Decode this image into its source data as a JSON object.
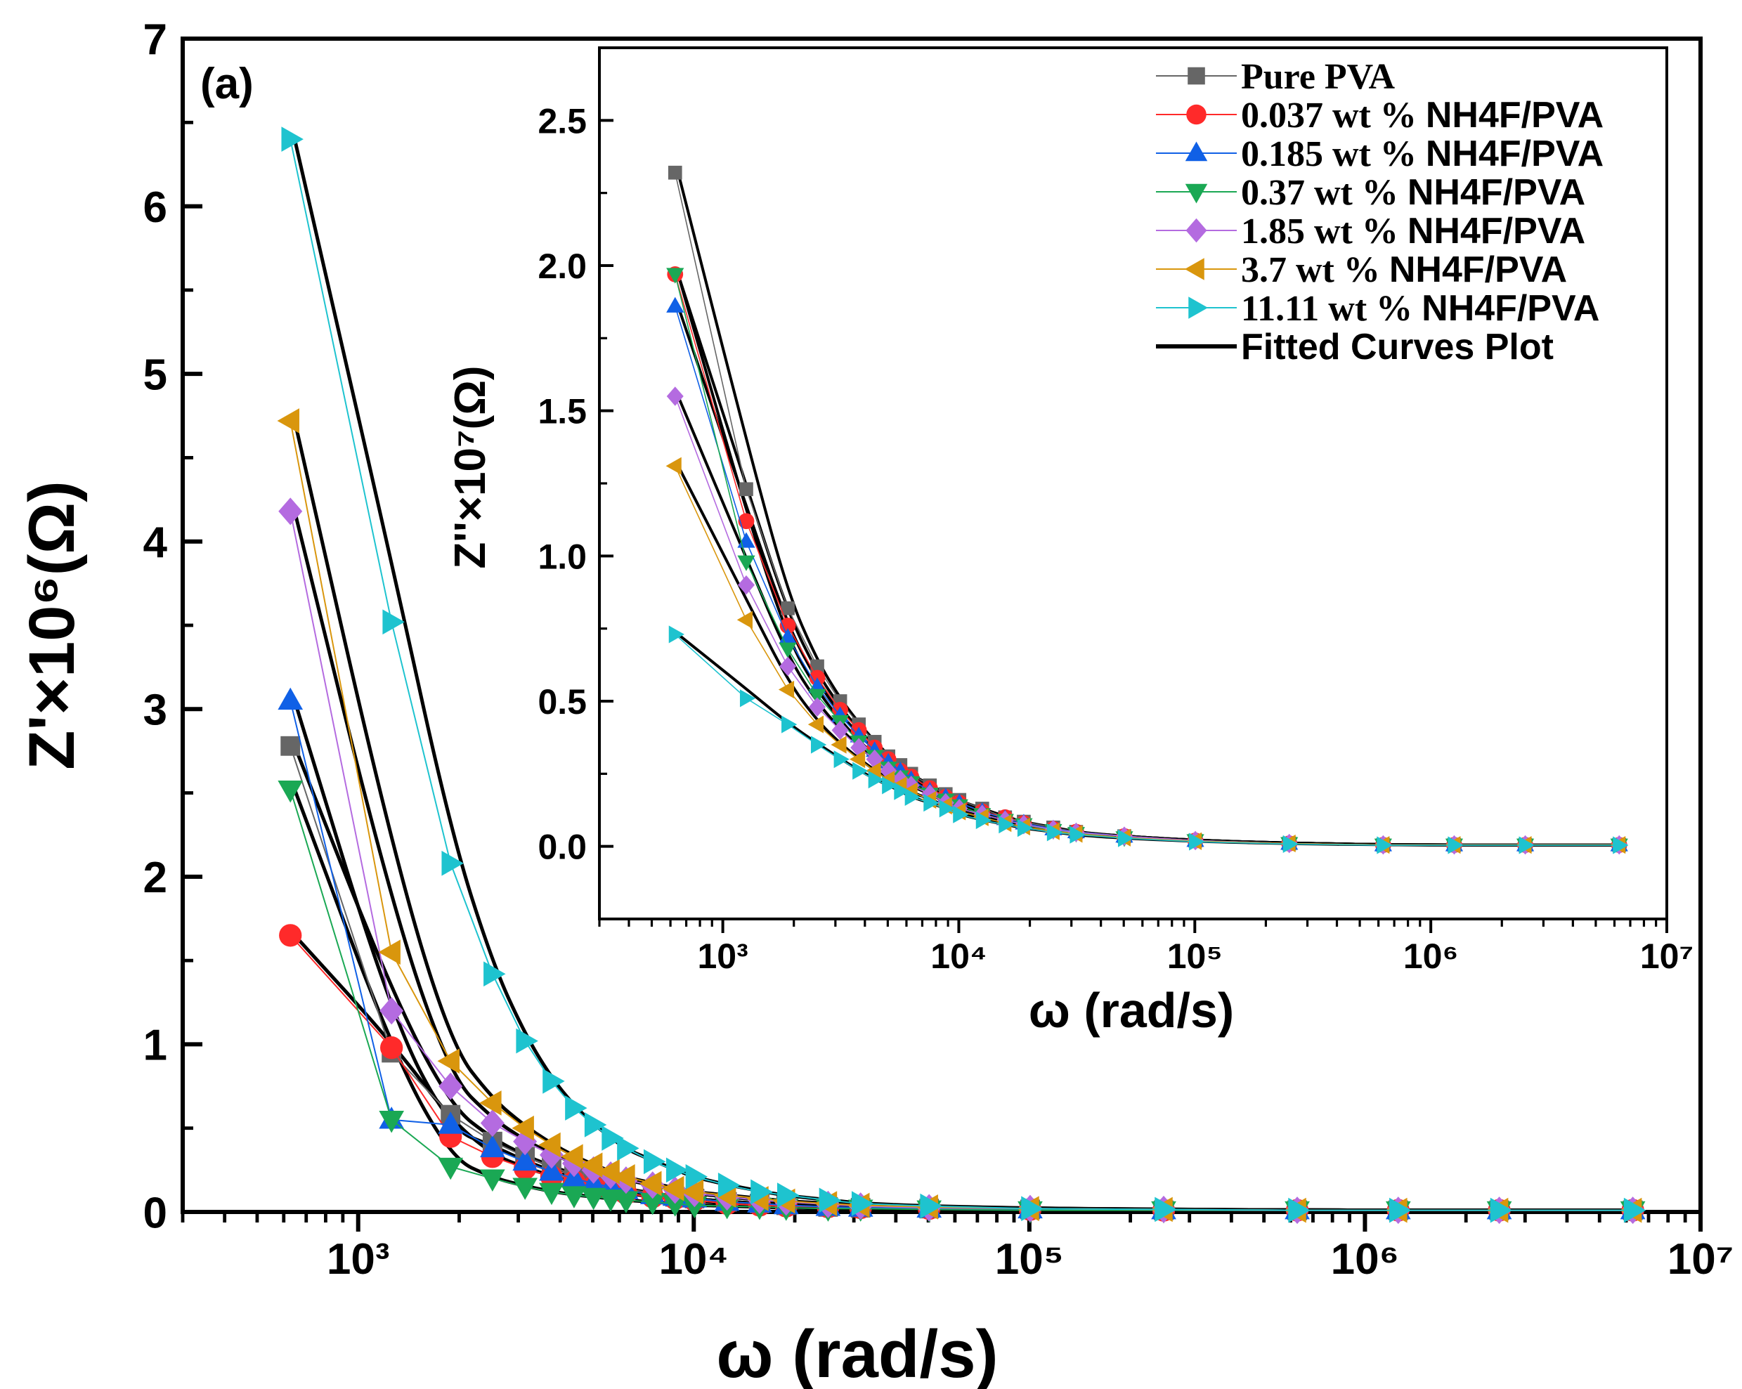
{
  "chart_data": [
    {
      "type": "scatter",
      "panel_label": "(a)",
      "xlabel": "ω (rad/s)",
      "ylabel": "Z'×10⁶(Ω)",
      "xscale": "log",
      "xlim": [
        300,
        10000000
      ],
      "ylim": [
        0,
        7
      ],
      "xtick_values": [
        1000,
        10000,
        100000,
        1000000,
        10000000
      ],
      "xtick_labels": [
        "10³",
        "10⁴",
        "10⁵",
        "10⁶",
        "10⁷"
      ],
      "ytick_values": [
        0,
        1,
        2,
        3,
        4,
        5,
        6,
        7
      ],
      "ytick_labels": [
        "0",
        "1",
        "2",
        "3",
        "4",
        "5",
        "6",
        "7"
      ],
      "series": [
        {
          "name": "Pure PVA",
          "color": "#666666",
          "marker": "square",
          "x": [
            628,
            1257,
            1885,
            2513,
            3142,
            3770,
            4398,
            5027,
            5655,
            6283,
            7540,
            8796,
            10053,
            12566,
            15708,
            18850,
            25133,
            31416,
            50265,
            100531,
            251327,
            628319,
            1256637,
            2513274,
            6283185
          ],
          "y": [
            2.78,
            0.95,
            0.58,
            0.42,
            0.33,
            0.27,
            0.22,
            0.19,
            0.16,
            0.14,
            0.11,
            0.09,
            0.08,
            0.06,
            0.05,
            0.04,
            0.03,
            0.025,
            0.02,
            0.015,
            0.01,
            0.01,
            0.01,
            0.01,
            0.01
          ]
        },
        {
          "name": "0.037 wt % NH4F/PVA",
          "color": "#ff2a2a",
          "marker": "circle",
          "x": [
            628,
            1257,
            1885,
            2513,
            3142,
            3770,
            4398,
            5027,
            5655,
            6283,
            7540,
            8796,
            10053,
            12566,
            15708,
            18850,
            25133,
            31416,
            50265,
            100531,
            251327,
            628319,
            1256637,
            2513274,
            6283185
          ],
          "y": [
            1.65,
            0.98,
            0.45,
            0.33,
            0.26,
            0.21,
            0.18,
            0.15,
            0.13,
            0.11,
            0.09,
            0.08,
            0.07,
            0.05,
            0.04,
            0.035,
            0.03,
            0.025,
            0.02,
            0.015,
            0.01,
            0.01,
            0.01,
            0.01,
            0.01
          ]
        },
        {
          "name": "0.185 wt % NH4F/PVA",
          "color": "#1060e6",
          "marker": "triangle-up",
          "x": [
            628,
            1257,
            1885,
            2513,
            3142,
            3770,
            4398,
            5027,
            5655,
            6283,
            7540,
            8796,
            10053,
            12566,
            15708,
            18850,
            25133,
            31416,
            50265,
            100531,
            251327,
            628319,
            1256637,
            2513274,
            6283185
          ],
          "y": [
            3.05,
            0.55,
            0.52,
            0.38,
            0.3,
            0.24,
            0.2,
            0.17,
            0.15,
            0.13,
            0.1,
            0.09,
            0.08,
            0.06,
            0.05,
            0.04,
            0.03,
            0.025,
            0.02,
            0.015,
            0.01,
            0.01,
            0.01,
            0.01,
            0.01
          ]
        },
        {
          "name": "0.37 wt % NH4F/PVA",
          "color": "#1aa854",
          "marker": "triangle-down",
          "x": [
            628,
            1257,
            1885,
            2513,
            3142,
            3770,
            4398,
            5027,
            5655,
            6283,
            7540,
            8796,
            10053,
            12566,
            15708,
            18850,
            25133,
            31416,
            50265,
            100531,
            251327,
            628319,
            1256637,
            2513274,
            6283185
          ],
          "y": [
            2.52,
            0.55,
            0.27,
            0.2,
            0.15,
            0.12,
            0.1,
            0.09,
            0.08,
            0.07,
            0.06,
            0.05,
            0.04,
            0.035,
            0.03,
            0.025,
            0.02,
            0.02,
            0.015,
            0.01,
            0.01,
            0.01,
            0.01,
            0.01,
            0.01
          ]
        },
        {
          "name": "1.85 wt % NH4F/PVA",
          "color": "#b46be0",
          "marker": "diamond",
          "x": [
            628,
            1257,
            1885,
            2513,
            3142,
            3770,
            4398,
            5027,
            5655,
            6283,
            7540,
            8796,
            10053,
            12566,
            15708,
            18850,
            25133,
            31416,
            50265,
            100531,
            251327,
            628319,
            1256637,
            2513274,
            6283185
          ],
          "y": [
            4.18,
            1.2,
            0.75,
            0.53,
            0.42,
            0.34,
            0.29,
            0.25,
            0.22,
            0.19,
            0.16,
            0.13,
            0.11,
            0.09,
            0.07,
            0.06,
            0.045,
            0.035,
            0.025,
            0.02,
            0.015,
            0.01,
            0.01,
            0.01,
            0.01
          ]
        },
        {
          "name": "3.7 wt % NH4F/PVA",
          "color": "#d9960d",
          "marker": "triangle-left",
          "x": [
            628,
            1257,
            1885,
            2513,
            3142,
            3770,
            4398,
            5027,
            5655,
            6283,
            7540,
            8796,
            10053,
            12566,
            15708,
            18850,
            25133,
            31416,
            50265,
            100531,
            251327,
            628319,
            1256637,
            2513274,
            6283185
          ],
          "y": [
            4.72,
            1.55,
            0.9,
            0.65,
            0.5,
            0.4,
            0.33,
            0.28,
            0.24,
            0.21,
            0.17,
            0.14,
            0.12,
            0.1,
            0.08,
            0.065,
            0.05,
            0.04,
            0.03,
            0.02,
            0.015,
            0.01,
            0.01,
            0.01,
            0.01
          ]
        },
        {
          "name": "11.11 wt % NH4F/PVA",
          "color": "#1ec3cf",
          "marker": "triangle-right",
          "x": [
            628,
            1257,
            1885,
            2513,
            3142,
            3770,
            4398,
            5027,
            5655,
            6283,
            7540,
            8796,
            10053,
            12566,
            15708,
            18850,
            25133,
            31416,
            50265,
            100531,
            251327,
            628319,
            1256637,
            2513274,
            6283185
          ],
          "y": [
            6.4,
            3.52,
            2.08,
            1.42,
            1.02,
            0.78,
            0.62,
            0.52,
            0.44,
            0.38,
            0.3,
            0.25,
            0.21,
            0.16,
            0.12,
            0.1,
            0.07,
            0.05,
            0.035,
            0.02,
            0.015,
            0.01,
            0.01,
            0.01,
            0.01
          ]
        }
      ],
      "fit_label": "Fitted Curves Plot",
      "fit_color": "#000000"
    },
    {
      "type": "scatter",
      "panel": "inset",
      "xlabel": "ω (rad/s)",
      "ylabel": "Z''×10⁷(Ω)",
      "xscale": "log",
      "xlim": [
        300,
        10000000
      ],
      "ylim": [
        -0.25,
        2.75
      ],
      "xtick_values": [
        1000,
        10000,
        100000,
        1000000,
        10000000
      ],
      "xtick_labels": [
        "10³",
        "10⁴",
        "10⁵",
        "10⁶",
        "10⁷"
      ],
      "ytick_values": [
        0,
        0.5,
        1.0,
        1.5,
        2.0,
        2.5
      ],
      "ytick_labels": [
        "0.0",
        "0.5",
        "1.0",
        "1.5",
        "2.0",
        "2.5"
      ],
      "series": [
        {
          "name": "Pure PVA",
          "color": "#666666",
          "marker": "square",
          "x": [
            628,
            1257,
            1885,
            2513,
            3142,
            3770,
            4398,
            5027,
            5655,
            6283,
            7540,
            8796,
            10053,
            12566,
            15708,
            18850,
            25133,
            31416,
            50265,
            100531,
            251327,
            628319,
            1256637,
            2513274,
            6283185
          ],
          "y": [
            2.32,
            1.23,
            0.82,
            0.62,
            0.5,
            0.42,
            0.36,
            0.31,
            0.28,
            0.25,
            0.21,
            0.18,
            0.16,
            0.13,
            0.1,
            0.085,
            0.065,
            0.05,
            0.035,
            0.02,
            0.01,
            0.005,
            0.005,
            0.005,
            0.005
          ]
        },
        {
          "name": "0.037 wt % NH4F/PVA",
          "color": "#ff2a2a",
          "marker": "circle",
          "x": [
            628,
            1257,
            1885,
            2513,
            3142,
            3770,
            4398,
            5027,
            5655,
            6283,
            7540,
            8796,
            10053,
            12566,
            15708,
            18850,
            25133,
            31416,
            50265,
            100531,
            251327,
            628319,
            1256637,
            2513274,
            6283185
          ],
          "y": [
            1.97,
            1.12,
            0.76,
            0.58,
            0.47,
            0.4,
            0.34,
            0.3,
            0.26,
            0.24,
            0.2,
            0.17,
            0.15,
            0.12,
            0.1,
            0.08,
            0.06,
            0.05,
            0.035,
            0.02,
            0.01,
            0.005,
            0.005,
            0.005,
            0.005
          ]
        },
        {
          "name": "0.185 wt % NH4F/PVA",
          "color": "#1060e6",
          "marker": "triangle-up",
          "x": [
            628,
            1257,
            1885,
            2513,
            3142,
            3770,
            4398,
            5027,
            5655,
            6283,
            7540,
            8796,
            10053,
            12566,
            15708,
            18850,
            25133,
            31416,
            50265,
            100531,
            251327,
            628319,
            1256637,
            2513274,
            6283185
          ],
          "y": [
            1.86,
            1.05,
            0.72,
            0.55,
            0.45,
            0.38,
            0.33,
            0.29,
            0.26,
            0.23,
            0.19,
            0.17,
            0.15,
            0.12,
            0.095,
            0.08,
            0.06,
            0.05,
            0.035,
            0.02,
            0.01,
            0.005,
            0.005,
            0.005,
            0.005
          ]
        },
        {
          "name": "0.37 wt % NH4F/PVA",
          "color": "#1aa854",
          "marker": "triangle-down",
          "x": [
            628,
            1257,
            1885,
            2513,
            3142,
            3770,
            4398,
            5027,
            5655,
            6283,
            7540,
            8796,
            10053,
            12566,
            15708,
            18850,
            25133,
            31416,
            50265,
            100531,
            251327,
            628319,
            1256637,
            2513274,
            6283185
          ],
          "y": [
            1.97,
            0.98,
            0.68,
            0.52,
            0.43,
            0.36,
            0.31,
            0.27,
            0.24,
            0.22,
            0.18,
            0.16,
            0.14,
            0.11,
            0.09,
            0.075,
            0.055,
            0.045,
            0.03,
            0.02,
            0.01,
            0.005,
            0.005,
            0.005,
            0.005
          ]
        },
        {
          "name": "1.85 wt % NH4F/PVA",
          "color": "#b46be0",
          "marker": "diamond",
          "x": [
            628,
            1257,
            1885,
            2513,
            3142,
            3770,
            4398,
            5027,
            5655,
            6283,
            7540,
            8796,
            10053,
            12566,
            15708,
            18850,
            25133,
            31416,
            50265,
            100531,
            251327,
            628319,
            1256637,
            2513274,
            6283185
          ],
          "y": [
            1.55,
            0.9,
            0.62,
            0.48,
            0.4,
            0.34,
            0.3,
            0.26,
            0.23,
            0.21,
            0.18,
            0.15,
            0.13,
            0.11,
            0.09,
            0.075,
            0.058,
            0.048,
            0.035,
            0.02,
            0.01,
            0.005,
            0.005,
            0.005,
            0.005
          ]
        },
        {
          "name": "3.7 wt % NH4F/PVA",
          "color": "#d9960d",
          "marker": "triangle-left",
          "x": [
            628,
            1257,
            1885,
            2513,
            3142,
            3770,
            4398,
            5027,
            5655,
            6283,
            7540,
            8796,
            10053,
            12566,
            15708,
            18850,
            25133,
            31416,
            50265,
            100531,
            251327,
            628319,
            1256637,
            2513274,
            6283185
          ],
          "y": [
            1.31,
            0.78,
            0.54,
            0.42,
            0.35,
            0.3,
            0.26,
            0.23,
            0.21,
            0.19,
            0.16,
            0.14,
            0.12,
            0.1,
            0.08,
            0.068,
            0.052,
            0.043,
            0.03,
            0.018,
            0.01,
            0.005,
            0.005,
            0.005,
            0.005
          ]
        },
        {
          "name": "11.11 wt % NH4F/PVA",
          "color": "#1ec3cf",
          "marker": "triangle-right",
          "x": [
            628,
            1257,
            1885,
            2513,
            3142,
            3770,
            4398,
            5027,
            5655,
            6283,
            7540,
            8796,
            10053,
            12566,
            15708,
            18850,
            25133,
            31416,
            50265,
            100531,
            251327,
            628319,
            1256637,
            2513274,
            6283185
          ],
          "y": [
            0.73,
            0.51,
            0.42,
            0.35,
            0.3,
            0.26,
            0.23,
            0.21,
            0.19,
            0.17,
            0.15,
            0.13,
            0.11,
            0.09,
            0.075,
            0.063,
            0.048,
            0.04,
            0.028,
            0.016,
            0.008,
            0.004,
            0.004,
            0.004,
            0.004
          ]
        }
      ],
      "legend": {
        "entries": [
          {
            "label": "Pure PVA",
            "font": "serif"
          },
          {
            "label": "0.037 wt % NH4F/PVA",
            "pre": "0.037 wt %",
            "post": "NH4F/PVA"
          },
          {
            "label": "0.185 wt % NH4F/PVA",
            "pre": "0.185 wt %",
            "post": "NH4F/PVA"
          },
          {
            "label": "0.37   wt % NH4F/PVA",
            "pre": "0.37   wt %",
            "post": "NH4F/PVA"
          },
          {
            "label": "1.85   wt % NH4F/PVA",
            "pre": "1.85   wt %",
            "post": "NH4F/PVA"
          },
          {
            "label": "3.7    wt % NH4F/PVA",
            "pre": "3.7    wt %",
            "post": "NH4F/PVA"
          },
          {
            "label": "11.11 wt % NH4F/PVA",
            "pre": "11.11 wt %",
            "post": "NH4F/PVA"
          },
          {
            "label": "Fitted Curves Plot",
            "font": "sans"
          }
        ],
        "position": "top-right"
      },
      "fit_label": "Fitted Curves Plot",
      "fit_color": "#000000"
    }
  ]
}
